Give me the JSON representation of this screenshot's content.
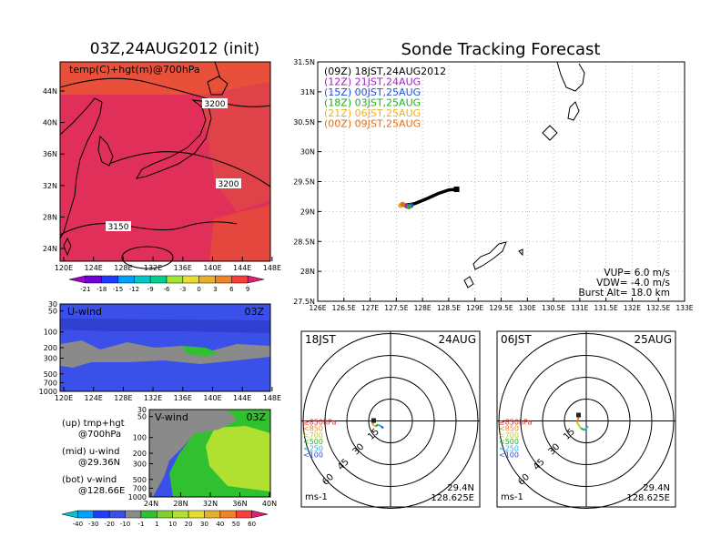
{
  "colors": {
    "background": "#ffffff",
    "temp_map_fill": "#e0305a",
    "temp_map_fill_warm": "#e8503a",
    "uwind_fill": "#3a50e8",
    "uwind_grey": "#8a8a8a",
    "vwind_fill": "#3a50e8",
    "vwind_green": "#30c030",
    "vwind_lightgreen": "#b0e030",
    "vwind_grey": "#8a8a8a",
    "track": "#000000"
  },
  "left_panel": {
    "title": "03Z,24AUG2012 (init)",
    "map_label": "temp(C)+hgt(m)@700hPa",
    "contours": [
      "3200",
      "3200",
      "3150"
    ],
    "lat_ticks": [
      "44N",
      "40N",
      "36N",
      "32N",
      "28N",
      "24N"
    ],
    "lon_ticks": [
      "120E",
      "124E",
      "128E",
      "132E",
      "136E",
      "140E",
      "144E",
      "148E"
    ],
    "temp_colorbar": {
      "labels": [
        "-21",
        "-18",
        "-15",
        "-12",
        "-9",
        "-6",
        "-3",
        "0",
        "3",
        "6",
        "9"
      ],
      "colors": [
        "#a000c8",
        "#6e00dc",
        "#1e3cff",
        "#00a0ff",
        "#00c8c8",
        "#00d28c",
        "#a0e632",
        "#e6dc32",
        "#e6af2d",
        "#f08228",
        "#fa3c3c",
        "#e01e78"
      ]
    },
    "uwind": {
      "label": "U-wind",
      "time": "03Z",
      "p_ticks": [
        "30",
        "50",
        "100",
        "200",
        "300",
        "500",
        "700",
        "1000"
      ],
      "lon_ticks": [
        "120E",
        "124E",
        "128E",
        "132E",
        "136E",
        "140E",
        "144E",
        "148E"
      ]
    },
    "vwind": {
      "label": "V-wind",
      "time": "03Z",
      "p_ticks": [
        "30",
        "50",
        "100",
        "200",
        "300",
        "500",
        "700",
        "1000"
      ],
      "lat_ticks": [
        "24N",
        "28N",
        "32N",
        "36N",
        "40N"
      ]
    },
    "notes": [
      {
        "a": "(up) tmp+hgt",
        "b": "@700hPa"
      },
      {
        "a": "(mid) u-wind",
        "b": "@29.36N"
      },
      {
        "a": "(bot) v-wind",
        "b": "@128.66E"
      }
    ],
    "wind_colorbar": {
      "labels": [
        "-40",
        "-30",
        "-20",
        "-10",
        "-1",
        "1",
        "10",
        "20",
        "30",
        "40",
        "50",
        "60"
      ],
      "colors": [
        "#00c8c8",
        "#00a0ff",
        "#1e3cff",
        "#3a50e8",
        "#8a8a8a",
        "#30c030",
        "#80d030",
        "#b0e030",
        "#e6dc32",
        "#e6af2d",
        "#f08228",
        "#fa3c3c",
        "#e01e78"
      ]
    }
  },
  "tracking": {
    "title": "Sonde Tracking Forecast",
    "legend": [
      {
        "text": "(09Z)  18JST,24AUG2012",
        "color": "#000000"
      },
      {
        "text": "(12Z)  21JST,24AUG",
        "color": "#a020c0"
      },
      {
        "text": "(15Z)  00JST,25AUG",
        "color": "#2050e0"
      },
      {
        "text": "(18Z)  03JST,25AUG",
        "color": "#20b020"
      },
      {
        "text": "(21Z)  06JST,25AUG",
        "color": "#f0b020"
      },
      {
        "text": "(00Z)  09JST,25AUG",
        "color": "#e07020"
      }
    ],
    "params": [
      "VUP=  6.0  m/s",
      "VDW=  -4.0  m/s",
      "Burst Alt=  18.0  km"
    ],
    "lat_ticks": [
      "31.5N",
      "31N",
      "30.5N",
      "30N",
      "29.5N",
      "29N",
      "28.5N",
      "28N",
      "27.5N"
    ],
    "lon_ticks": [
      "126E",
      "126.5E",
      "127E",
      "127.5E",
      "128E",
      "128.5E",
      "129E",
      "129.5E",
      "130E",
      "130.5E",
      "131E",
      "131.5E",
      "132E",
      "132.5E",
      "133E"
    ]
  },
  "chart_data": [
    {
      "type": "line",
      "title": "Sonde Tracking Forecast",
      "xlim": [
        126,
        133
      ],
      "ylim": [
        27.5,
        31.5
      ],
      "series": [
        {
          "name": "(09Z)  18JST,24AUG2012",
          "x": [
            127.6,
            127.85,
            128.1,
            128.3,
            128.5,
            128.65
          ],
          "y": [
            29.1,
            29.13,
            29.22,
            29.3,
            29.36,
            29.37
          ]
        },
        {
          "name": "(12Z)  21JST,24AUG",
          "x": [
            127.7
          ],
          "y": [
            29.09
          ]
        },
        {
          "name": "(15Z)  00JST,25AUG",
          "x": [
            127.78
          ],
          "y": [
            29.1
          ]
        },
        {
          "name": "(18Z)  03JST,25AUG",
          "x": [
            127.74
          ],
          "y": [
            29.08
          ]
        },
        {
          "name": "(21Z)  06JST,25AUG",
          "x": [
            127.58
          ],
          "y": [
            29.1
          ]
        },
        {
          "name": "(00Z)  09JST,25AUG",
          "x": [
            127.62
          ],
          "y": [
            29.12
          ]
        }
      ]
    }
  ],
  "polar_panels": [
    {
      "time": "18JST",
      "date": "24AUG",
      "lat": "29.4N",
      "lon": "128.625E",
      "unit": "ms-1",
      "ring_labels": [
        "15",
        "30",
        "45",
        "60"
      ],
      "levels": [
        "≥850hPa",
        "<850",
        "<700",
        "<500",
        "<250",
        "<100"
      ],
      "level_colors": [
        "#e02020",
        "#f08020",
        "#c8c820",
        "#20b020",
        "#20b0e0",
        "#2050e0"
      ]
    },
    {
      "time": "06JST",
      "date": "25AUG",
      "lat": "29.4N",
      "lon": "128.625E",
      "unit": "ms-1",
      "ring_labels": [
        "15",
        "30",
        "45",
        "60"
      ],
      "levels": [
        "≥850hPa",
        "<850",
        "<700",
        "<500",
        "<250",
        "<100"
      ],
      "level_colors": [
        "#e02020",
        "#f08020",
        "#c8c820",
        "#20b020",
        "#20b0e0",
        "#2050e0"
      ]
    }
  ]
}
